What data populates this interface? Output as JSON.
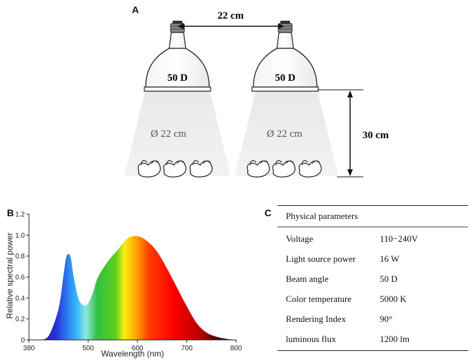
{
  "panel_a": {
    "label": "A",
    "spacing": "22 cm",
    "height": "30 cm",
    "lamps": [
      {
        "name": "50 D",
        "diameter": "Ø 22 cm"
      },
      {
        "name": "50 D",
        "diameter": "Ø 22 cm"
      }
    ]
  },
  "panel_b": {
    "label": "B",
    "chart_data": {
      "type": "area",
      "title": "",
      "xlabel": "Wavelength (nm)",
      "ylabel": "Relative spectral power",
      "xlim": [
        380,
        800
      ],
      "ylim": [
        0,
        1.2
      ],
      "xticks": [
        380,
        500,
        600,
        700,
        800
      ],
      "yticks": [
        0,
        0.2,
        0.4,
        0.6,
        0.8,
        1.0,
        1.2
      ],
      "ytick_labels": [
        "0",
        "0.2",
        "0.4",
        "0.6",
        "0.8",
        "1.0",
        "1.2"
      ],
      "grid": false,
      "fill": "visible-spectrum gradient",
      "series": [
        {
          "x": [
            400,
            420,
            440,
            450,
            455,
            460,
            465,
            470,
            480,
            490,
            500,
            510,
            520,
            540,
            560,
            580,
            600,
            620,
            640,
            660,
            680,
            700,
            720,
            740,
            760,
            780,
            800
          ],
          "y": [
            0.0,
            0.04,
            0.3,
            0.62,
            0.78,
            0.82,
            0.78,
            0.62,
            0.4,
            0.33,
            0.35,
            0.46,
            0.6,
            0.75,
            0.86,
            0.97,
            0.99,
            0.94,
            0.84,
            0.68,
            0.5,
            0.32,
            0.16,
            0.07,
            0.03,
            0.01,
            0.0
          ]
        }
      ]
    }
  },
  "panel_c": {
    "label": "C",
    "header": "Physical parameters",
    "rows": [
      {
        "key": "Voltage",
        "value": "110−240V"
      },
      {
        "key": "Light source power",
        "value": "16 W"
      },
      {
        "key": "Beam angle",
        "value": "50 D"
      },
      {
        "key": "Color temperature",
        "value": "5000 K"
      },
      {
        "key": "Rendering Index",
        "value": "90°"
      },
      {
        "key": "luminous flux",
        "value": "1200 lm"
      }
    ]
  }
}
